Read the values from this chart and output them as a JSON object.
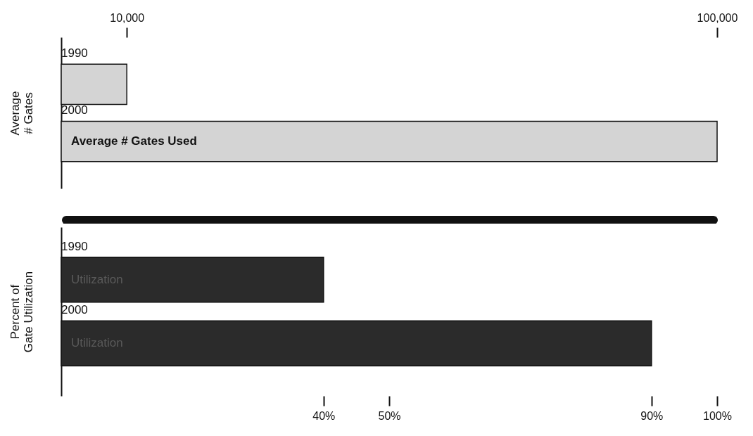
{
  "chart_data": [
    {
      "type": "bar",
      "orientation": "horizontal",
      "ylabel": "Average\n# Gates",
      "categories": [
        "1990",
        "2000"
      ],
      "series": [
        {
          "values": [
            10000,
            100000
          ],
          "color": "#d4d4d4",
          "axis": "x2"
        }
      ],
      "x2lim": [
        0,
        100000
      ],
      "x2ticks": [
        {
          "value": 10000,
          "label": "10,000"
        },
        {
          "value": 100000,
          "label": "100,000"
        }
      ],
      "grid": false,
      "annotations": [
        "Average # Gates Used"
      ]
    },
    {
      "type": "bar",
      "orientation": "horizontal",
      "ylabel": "Percent of\nGate Utilization",
      "categories": [
        "1990",
        "2000"
      ],
      "values": [
        40,
        90
      ],
      "color": "#2b2b2b",
      "xlim": [
        0,
        100
      ],
      "xticks": [
        {
          "value": 40,
          "label": "40%"
        },
        {
          "value": 50,
          "label": "50%"
        },
        {
          "value": 90,
          "label": "90%"
        },
        {
          "value": 100,
          "label": "100%"
        }
      ],
      "grid": false,
      "annotations": [
        "Utilization",
        "Utilization"
      ]
    }
  ]
}
